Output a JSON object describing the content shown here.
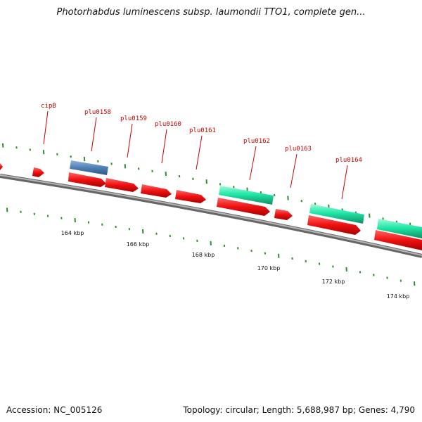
{
  "title": "Photorhabdus luminescens subsp. laumondii TTO1, complete gen...",
  "footer": {
    "accession": "Accession: NC_005126",
    "summary": "Topology: circular; Length: 5,688,987 bp; Genes: 4,790"
  },
  "colors": {
    "cds": "#ee1111",
    "highlight_blue": "#4f80b4",
    "highlight_green": "#22e8a8",
    "tick": "#2f8f2f",
    "backbone": "#888888",
    "label": "#cc0000"
  },
  "gene_labels": [
    "cipB",
    "plu0158",
    "plu0159",
    "plu0160",
    "plu0161",
    "plu0162",
    "plu0163",
    "plu0164"
  ],
  "scale_labels": [
    "164 kbp",
    "166 kbp",
    "168 kbp",
    "170 kbp",
    "172 kbp",
    "174 kbp"
  ]
}
